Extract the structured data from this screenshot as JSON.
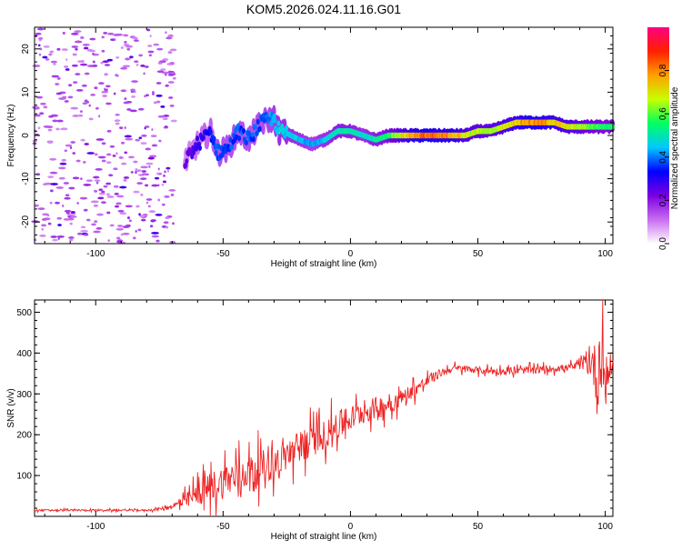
{
  "title": "KOM5.2026.024.11.16.G01",
  "chart_data": [
    {
      "type": "heatmap",
      "title": "KOM5.2026.024.11.16.G01",
      "xlabel": "Height of straight line (km)",
      "ylabel": "Frequency (Hz)",
      "xlim": [
        -124,
        103
      ],
      "ylim": [
        -25,
        25
      ],
      "xticks": [
        -100,
        -50,
        0,
        50,
        100
      ],
      "yticks": [
        -20,
        -10,
        0,
        10,
        20
      ],
      "colorbar": {
        "label": "Normalized spectral amplitude",
        "range": [
          0,
          1
        ],
        "ticks": [
          0.0,
          0.2,
          0.4,
          0.6,
          0.8
        ],
        "colors": [
          "#ffffff",
          "#c86cf0",
          "#7a00e0",
          "#0000ff",
          "#00c8ff",
          "#00ff60",
          "#c8ff00",
          "#ffa000",
          "#ff2000",
          "#ff0080"
        ]
      },
      "trace": {
        "x": [
          -65,
          -60,
          -55,
          -52,
          -48,
          -44,
          -40,
          -35,
          -30,
          -28,
          -25,
          -20,
          -15,
          -10,
          -5,
          0,
          5,
          10,
          15,
          20,
          25,
          30,
          35,
          40,
          45,
          50,
          55,
          60,
          65,
          70,
          75,
          80,
          85,
          90,
          95,
          100,
          103
        ],
        "freq": [
          -6,
          -2,
          1,
          -4,
          -3,
          1,
          -1,
          3,
          4,
          1,
          0.5,
          -1,
          -2,
          -1,
          1,
          1,
          0,
          -1,
          0,
          0,
          0,
          0,
          0,
          0,
          0,
          1,
          1,
          2,
          3,
          3,
          3,
          3,
          2,
          2,
          2,
          2,
          2
        ],
        "amplitude": [
          0.25,
          0.3,
          0.35,
          0.4,
          0.4,
          0.4,
          0.4,
          0.4,
          0.45,
          0.5,
          0.5,
          0.5,
          0.45,
          0.5,
          0.55,
          0.55,
          0.5,
          0.55,
          0.6,
          0.75,
          0.85,
          0.9,
          0.85,
          0.85,
          0.75,
          0.7,
          0.7,
          0.75,
          0.8,
          0.85,
          0.85,
          0.8,
          0.75,
          0.7,
          0.65,
          0.6,
          0.6
        ]
      }
    },
    {
      "type": "line",
      "xlabel": "Height of straight line (km)",
      "ylabel": "SNR (v/v)",
      "xlim": [
        -124,
        103
      ],
      "ylim": [
        0,
        530
      ],
      "xticks": [
        -100,
        -50,
        0,
        50,
        100
      ],
      "yticks": [
        100,
        200,
        300,
        400,
        500
      ],
      "line_color": "#ee2222",
      "x": [
        -124,
        -110,
        -100,
        -90,
        -80,
        -75,
        -70,
        -65,
        -60,
        -55,
        -50,
        -45,
        -40,
        -35,
        -30,
        -25,
        -20,
        -15,
        -10,
        -5,
        0,
        5,
        10,
        15,
        20,
        25,
        30,
        35,
        40,
        45,
        50,
        55,
        60,
        65,
        70,
        75,
        80,
        85,
        90,
        95,
        97,
        98,
        100,
        103
      ],
      "y": [
        15,
        15,
        15,
        15,
        15,
        18,
        25,
        35,
        55,
        70,
        85,
        100,
        110,
        120,
        130,
        150,
        170,
        185,
        200,
        220,
        240,
        255,
        265,
        275,
        290,
        310,
        330,
        350,
        362,
        362,
        358,
        356,
        355,
        356,
        358,
        360,
        362,
        364,
        370,
        380,
        330,
        420,
        330,
        380
      ],
      "noise_amplitude": [
        3,
        3,
        3,
        3,
        3,
        5,
        8,
        25,
        40,
        55,
        60,
        60,
        55,
        60,
        55,
        55,
        60,
        55,
        50,
        50,
        45,
        40,
        40,
        35,
        30,
        25,
        20,
        15,
        12,
        12,
        12,
        12,
        12,
        12,
        12,
        12,
        12,
        12,
        14,
        60,
        140,
        140,
        90,
        30
      ]
    }
  ]
}
